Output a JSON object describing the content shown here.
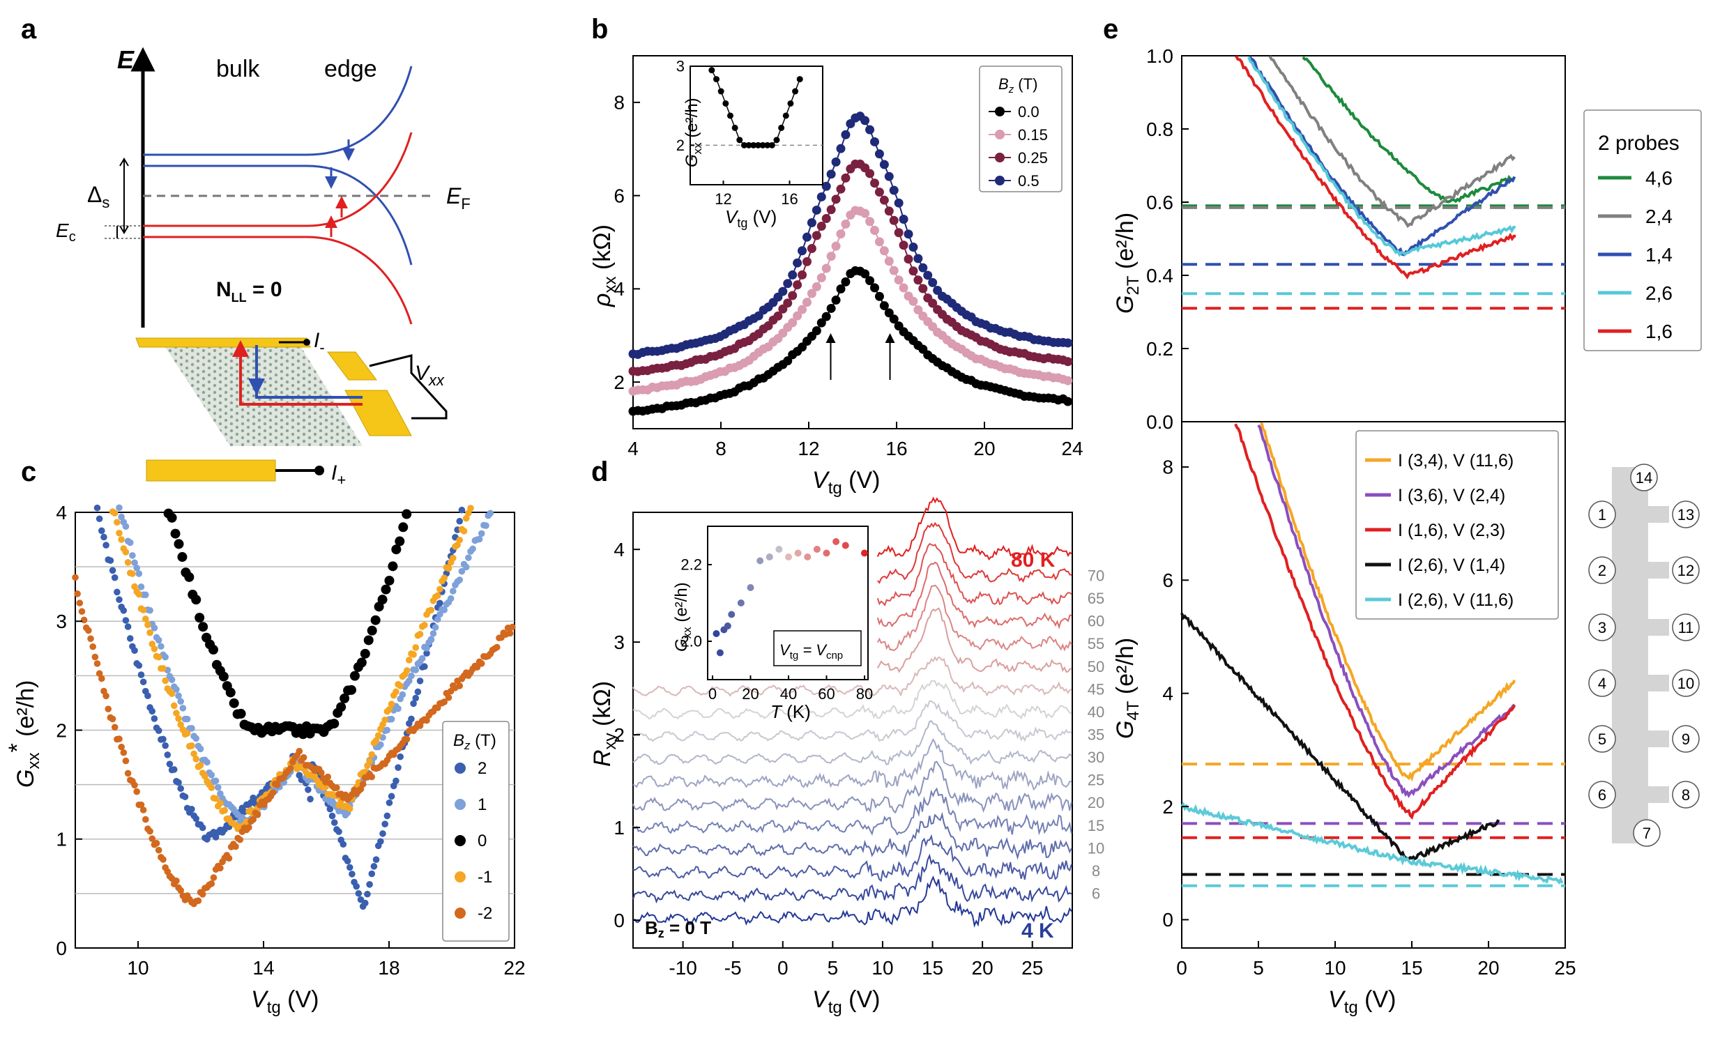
{
  "panel_labels": {
    "a": "a",
    "b": "b",
    "c": "c",
    "d": "d",
    "e": "e"
  },
  "panel_a": {
    "axis_label": "E",
    "bulk": "bulk",
    "edge": "edge",
    "delta_s": "Δ",
    "delta_sub": "s",
    "ec": "E",
    "ec_sub": "c",
    "ef": "E",
    "ef_sub": "F",
    "nll": "N",
    "nll_sub": "LL",
    "nll_val": " = 0",
    "i_minus": "I",
    "i_minus_sub": "-",
    "i_plus": "I",
    "i_plus_sub": "+",
    "vxx": "V",
    "vxx_sub": "xx",
    "colors": {
      "blue": "#3050b0",
      "red": "#e02020",
      "gold": "#f5c518",
      "dash": "#777777"
    }
  },
  "chart_data": [
    {
      "id": "b",
      "type": "scatter",
      "xlabel": "V",
      "xlabel_sub": "tg",
      "xunit": " (V)",
      "ylabel": "ρ",
      "ylabel_sub": "xx",
      "yunit": " (kΩ)",
      "xlim": [
        4,
        24
      ],
      "ylim": [
        1,
        9
      ],
      "xticks": [
        "4",
        "8",
        "12",
        "16",
        "20",
        "24"
      ],
      "yticks": [
        "2",
        "4",
        "6",
        "8"
      ],
      "legend_title": "B",
      "legend_title_sub": "z",
      "legend_unit": " (T)",
      "series": [
        {
          "name": "0.0",
          "color": "#000000",
          "peak": 4.3,
          "base": 1.15
        },
        {
          "name": "0.15",
          "color": "#d99cb0",
          "peak": 5.6,
          "base": 1.55
        },
        {
          "name": "0.25",
          "color": "#7a2040",
          "peak": 6.6,
          "base": 1.95
        },
        {
          "name": "0.5",
          "color": "#1f2a78",
          "peak": 7.6,
          "base": 2.35
        }
      ],
      "arrows_x": [
        13,
        15.7
      ],
      "inset": {
        "xlabel": "V",
        "xlabel_sub": "tg",
        "xunit": " (V)",
        "ylabel": "G",
        "ylabel_sub": "xx",
        "yunit": " (e²/h)",
        "xlim": [
          10,
          18
        ],
        "ylim": [
          1.5,
          3
        ],
        "xticks": [
          "12",
          "16"
        ],
        "yticks": [
          "2",
          "3"
        ],
        "min_value": 2.0
      }
    },
    {
      "id": "c",
      "type": "scatter",
      "xlabel": "V",
      "xlabel_sub": "tg",
      "xunit": " (V)",
      "ylabel": "G",
      "ylabel_sub": "xx",
      "ylabel_star": "*",
      "yunit": " (e²/h)",
      "xlim": [
        8,
        22
      ],
      "ylim": [
        0,
        4
      ],
      "xticks": [
        "10",
        "14",
        "18",
        "22"
      ],
      "yticks": [
        "0",
        "1",
        "2",
        "3",
        "4"
      ],
      "legend_title": "B",
      "legend_title_sub": "z",
      "legend_unit": " (T)",
      "series": [
        {
          "name": "2",
          "color": "#3a5fb0"
        },
        {
          "name": "1",
          "color": "#7ea1da"
        },
        {
          "name": "0",
          "color": "#000000"
        },
        {
          "name": "-1",
          "color": "#f5a623"
        },
        {
          "name": "-2",
          "color": "#d2691e"
        }
      ]
    },
    {
      "id": "d",
      "type": "line",
      "xlabel": "V",
      "xlabel_sub": "tg",
      "xunit": " (V)",
      "ylabel": "R",
      "ylabel_sub": "xy",
      "yunit": " (kΩ)",
      "xlim": [
        -15,
        29
      ],
      "ylim": [
        -0.3,
        4.4
      ],
      "xticks": [
        "-10",
        "-5",
        "0",
        "5",
        "10",
        "15",
        "20",
        "25"
      ],
      "yticks": [
        "0",
        "1",
        "2",
        "3",
        "4"
      ],
      "temperatures": [
        "4 K",
        "6",
        "8",
        "10",
        "15",
        "20",
        "25",
        "30",
        "35",
        "40",
        "45",
        "50",
        "55",
        "60",
        "65",
        "70",
        "80 K"
      ],
      "top_label": "80 K",
      "bottom_label": "4 K",
      "bz_label": "B",
      "bz_sub": "z",
      "bz_val": " = 0 T",
      "inset": {
        "xlabel": "T",
        "xunit": " (K)",
        "ylabel": "G",
        "ylabel_sub": "xx",
        "yunit": " (e²/h)",
        "xlim": [
          0,
          80
        ],
        "ylim": [
          1.9,
          2.3
        ],
        "xticks": [
          "0",
          "20",
          "40",
          "60",
          "80"
        ],
        "yticks": [
          "2.0",
          "2.2"
        ],
        "note": "V",
        "note_sub1": "tg",
        "note_mid": " = V",
        "note_sub2": "cnp",
        "T": [
          2,
          4,
          6,
          8,
          10,
          15,
          20,
          25,
          30,
          35,
          40,
          45,
          50,
          55,
          60,
          65,
          70,
          80
        ],
        "G": [
          2.02,
          1.97,
          2.03,
          2.04,
          2.07,
          2.1,
          2.14,
          2.21,
          2.22,
          2.24,
          2.22,
          2.23,
          2.22,
          2.24,
          2.23,
          2.26,
          2.25,
          2.23
        ]
      }
    },
    {
      "id": "e_top",
      "type": "line",
      "ylabel": "G",
      "ylabel_sub": "2T",
      "yunit": " (e²/h)",
      "xlim": [
        0,
        25
      ],
      "ylim": [
        0,
        1
      ],
      "yticks": [
        "0.0",
        "0.2",
        "0.4",
        "0.6",
        "0.8",
        "1.0"
      ],
      "legend_title": "2 probes",
      "series": [
        {
          "name": "4,6",
          "color": "#1e8a3c",
          "dash": 0.59
        },
        {
          "name": "2,4",
          "color": "#808080",
          "dash": 0.585
        },
        {
          "name": "1,4",
          "color": "#3050b0",
          "dash": 0.43
        },
        {
          "name": "2,6",
          "color": "#56c8d8",
          "dash": 0.35
        },
        {
          "name": "1,6",
          "color": "#e02020",
          "dash": 0.31
        }
      ]
    },
    {
      "id": "e_bottom",
      "type": "line",
      "xlabel": "V",
      "xlabel_sub": "tg",
      "xunit": " (V)",
      "ylabel": "G",
      "ylabel_sub": "4T",
      "yunit": " (e²/h)",
      "xlim": [
        0,
        25
      ],
      "ylim": [
        -0.5,
        8.8
      ],
      "xticks": [
        "0",
        "5",
        "10",
        "15",
        "20",
        "25"
      ],
      "yticks": [
        "0",
        "2",
        "4",
        "6",
        "8"
      ],
      "series": [
        {
          "name": "I (3,4), V (11,6)",
          "color": "#f5a623",
          "dash": 2.75
        },
        {
          "name": "I (3,6), V (2,4)",
          "color": "#8a4fbf",
          "dash": 1.7
        },
        {
          "name": "I (1,6), V (2,3)",
          "color": "#e02020",
          "dash": 1.45
        },
        {
          "name": "I (2,6), V (1,4)",
          "color": "#111111",
          "dash": 0.8
        },
        {
          "name": "I (2,6), V (11,6)",
          "color": "#5ccad8",
          "dash": 0.6
        }
      ]
    }
  ],
  "device": {
    "contacts": [
      "14",
      "1",
      "13",
      "2",
      "12",
      "3",
      "11",
      "4",
      "10",
      "5",
      "9",
      "6",
      "8",
      "7"
    ]
  }
}
